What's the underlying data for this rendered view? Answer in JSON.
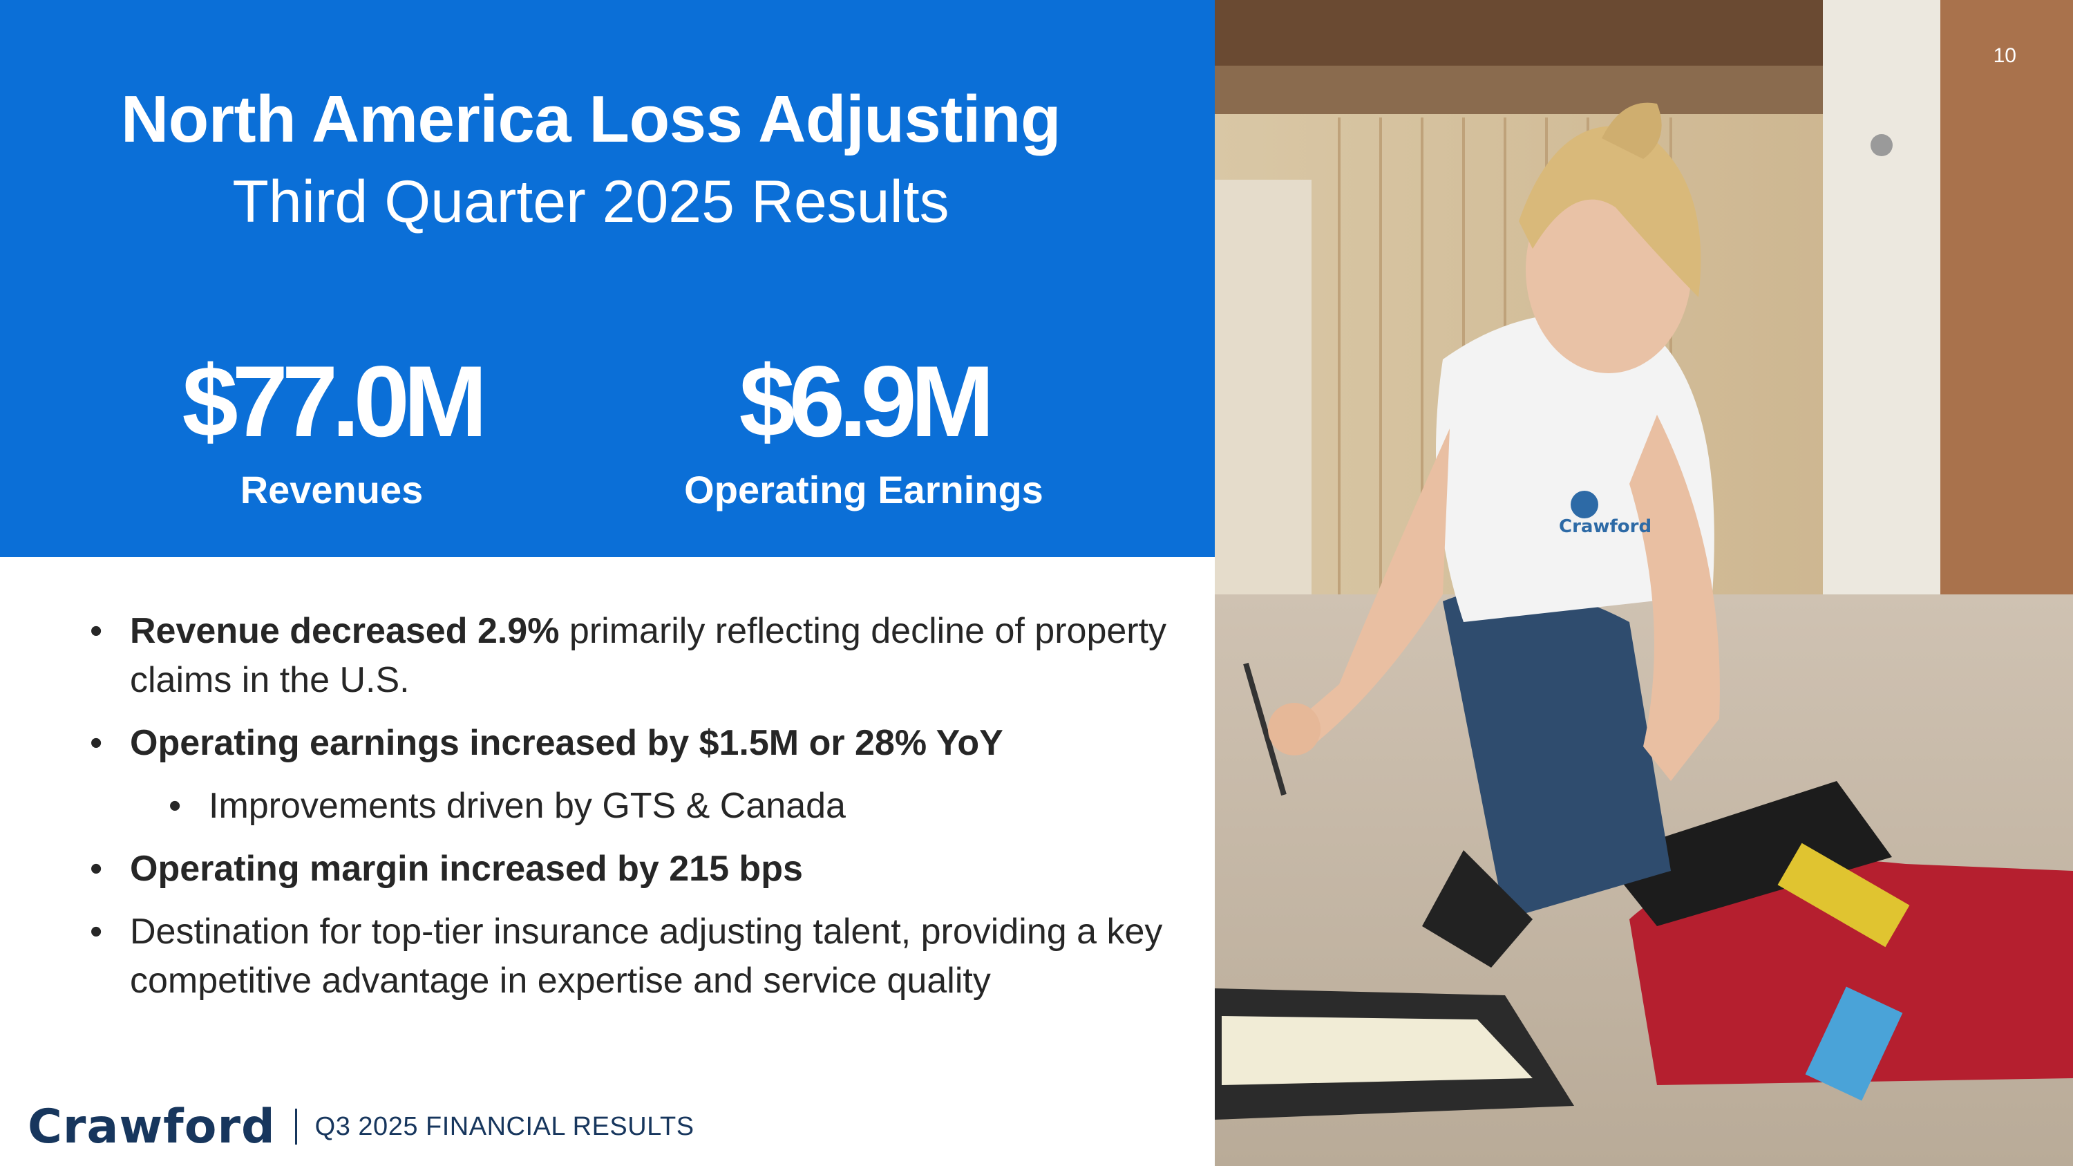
{
  "slide": {
    "page_number": "10",
    "title": "North America Loss Adjusting",
    "subtitle": "Third Quarter 2025 Results"
  },
  "metrics": [
    {
      "value": "$77.0M",
      "label": "Revenues"
    },
    {
      "value": "$6.9M",
      "label": "Operating Earnings"
    }
  ],
  "bullets": [
    {
      "bold": "Revenue decreased 2.9%",
      "text": " primarily reflecting decline of property claims in the U.S."
    },
    {
      "bold": "Operating earnings increased by $1.5M or 28% YoY",
      "text": ""
    },
    {
      "bold": "",
      "text": "Improvements driven by GTS & Canada"
    },
    {
      "bold": "Operating margin increased by 215 bps",
      "text": ""
    },
    {
      "bold": "",
      "text": "Destination for top-tier insurance adjusting talent, providing a key competitive advantage in expertise and service quality"
    }
  ],
  "footer": {
    "logo": "Crawford",
    "text": "Q3 2025 FINANCIAL RESULTS"
  },
  "photo": {
    "shirt_logo": "Crawford"
  },
  "colors": {
    "header_blue": "#0b6fd7",
    "navy": "#17365d",
    "body_text": "#262626"
  }
}
